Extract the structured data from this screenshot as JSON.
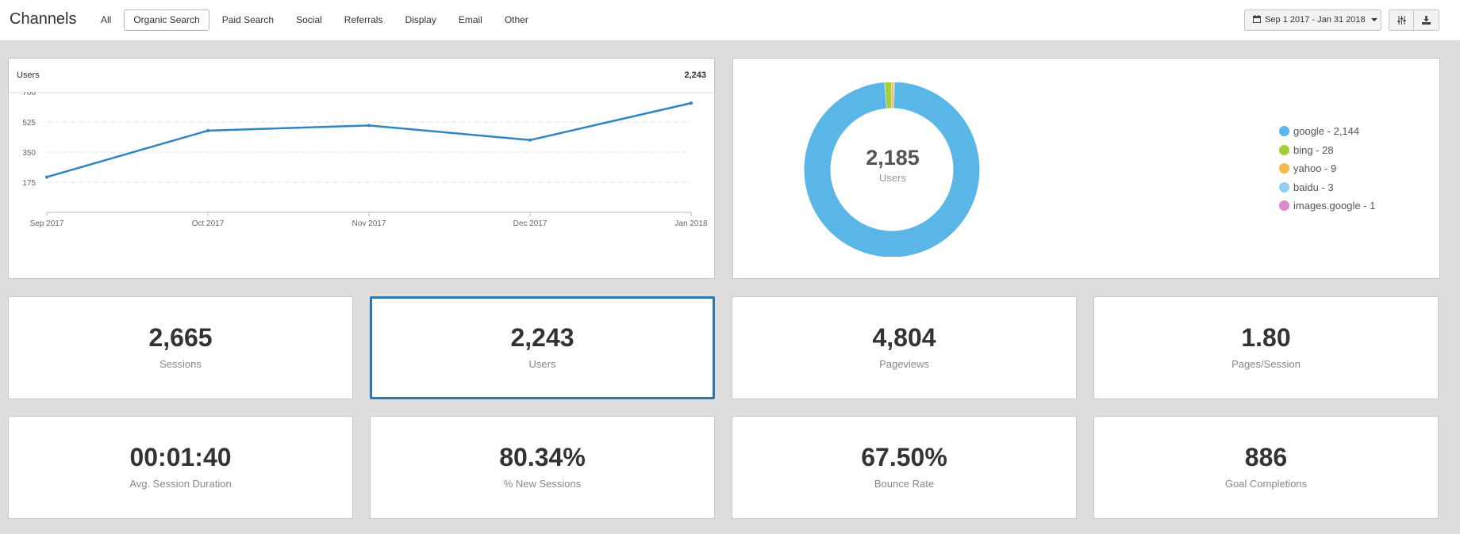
{
  "header": {
    "title": "Channels",
    "tabs": [
      "All",
      "Organic Search",
      "Paid Search",
      "Social",
      "Referrals",
      "Display",
      "Email",
      "Other"
    ],
    "active_tab": "Organic Search",
    "date_range": "Sep 1 2017 - Jan 31 2018",
    "icons": [
      "calendar-icon",
      "caret-down-icon",
      "sliders-icon",
      "download-icon"
    ]
  },
  "line_chart": {
    "label": "Users",
    "total": "2,243"
  },
  "donut_chart": {
    "center_value": "2,185",
    "center_label": "Users",
    "legend": [
      {
        "label": "google - 2,144",
        "color": "#5ab6e6"
      },
      {
        "label": "bing - 28",
        "color": "#a6ce39"
      },
      {
        "label": "yahoo - 9",
        "color": "#f5b94a"
      },
      {
        "label": "baidu - 3",
        "color": "#8ed1f2"
      },
      {
        "label": "images.google - 1",
        "color": "#d98bd1"
      }
    ]
  },
  "kpis": [
    {
      "value": "2,665",
      "label": "Sessions"
    },
    {
      "value": "2,243",
      "label": "Users"
    },
    {
      "value": "4,804",
      "label": "Pageviews"
    },
    {
      "value": "1.80",
      "label": "Pages/Session"
    },
    {
      "value": "00:01:40",
      "label": "Avg. Session Duration"
    },
    {
      "value": "80.34%",
      "label": "% New Sessions"
    },
    {
      "value": "67.50%",
      "label": "Bounce Rate"
    },
    {
      "value": "886",
      "label": "Goal Completions"
    }
  ],
  "selected_kpi": "Users",
  "chart_data": [
    {
      "type": "line",
      "title": "Users",
      "categories": [
        "Sep 2017",
        "Oct 2017",
        "Nov 2017",
        "Dec 2017",
        "Jan 2018"
      ],
      "series": [
        {
          "values": [
            205,
            475,
            505,
            420,
            635
          ],
          "color": "#2e86c1"
        }
      ],
      "yticks": [
        175,
        350,
        525,
        700
      ],
      "ylim": [
        0,
        700
      ],
      "grid": true
    },
    {
      "type": "pie",
      "donut": true,
      "categories": [
        "google",
        "bing",
        "yahoo",
        "baidu",
        "images.google"
      ],
      "values": [
        2144,
        28,
        9,
        3,
        1
      ],
      "colors": [
        "#5ab6e6",
        "#a6ce39",
        "#f5b94a",
        "#8ed1f2",
        "#d98bd1"
      ]
    }
  ]
}
